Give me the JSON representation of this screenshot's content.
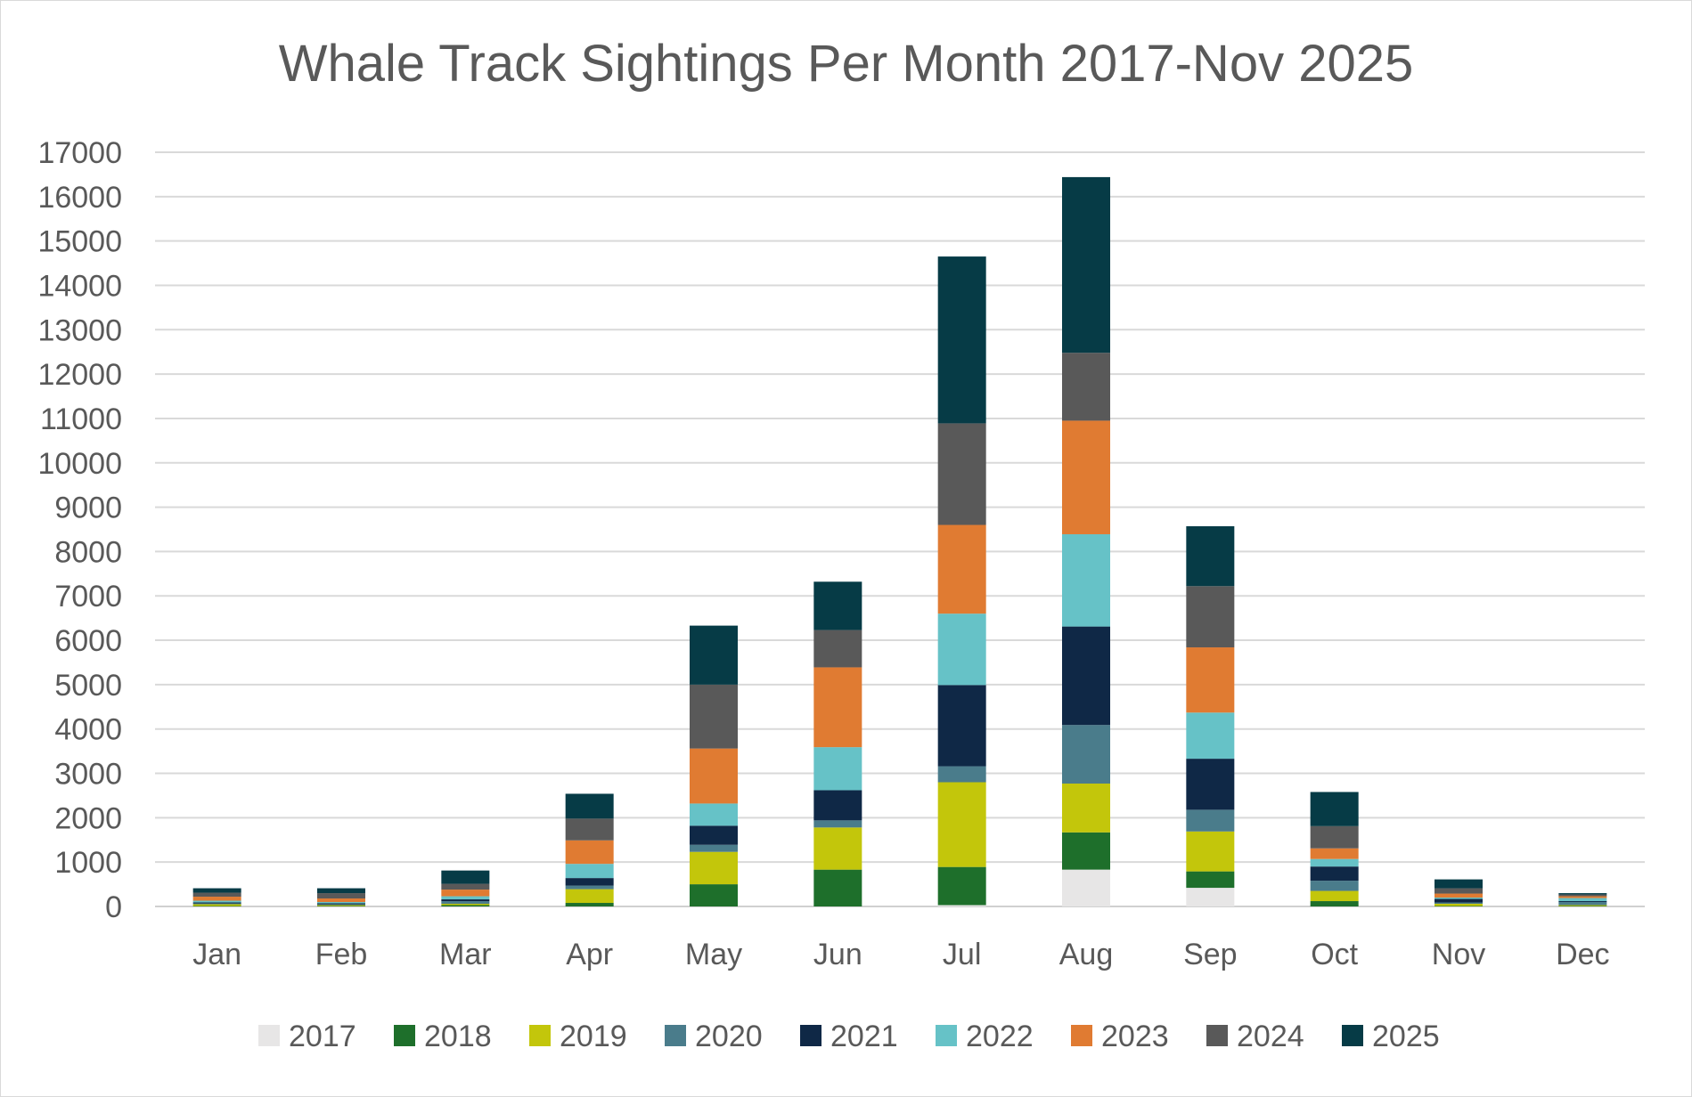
{
  "chart_data": {
    "type": "bar",
    "stacked": true,
    "title": "Whale Track Sightings Per Month 2017-Nov 2025",
    "xlabel": "",
    "ylabel": "",
    "ylim": [
      0,
      17000
    ],
    "ytick_step": 1000,
    "grid": true,
    "legend_position": "bottom",
    "categories": [
      "Jan",
      "Feb",
      "Mar",
      "Apr",
      "May",
      "Jun",
      "Jul",
      "Aug",
      "Sep",
      "Oct",
      "Nov",
      "Dec"
    ],
    "series": [
      {
        "name": "2017",
        "color": "#e7e6e6",
        "values": [
          0,
          0,
          0,
          0,
          0,
          0,
          30,
          830,
          420,
          0,
          0,
          0
        ]
      },
      {
        "name": "2018",
        "color": "#1e6f2b",
        "values": [
          10,
          10,
          30,
          80,
          500,
          830,
          860,
          840,
          370,
          120,
          10,
          10
        ]
      },
      {
        "name": "2019",
        "color": "#c3c60b",
        "values": [
          40,
          20,
          30,
          310,
          730,
          950,
          1910,
          1100,
          900,
          230,
          50,
          20
        ]
      },
      {
        "name": "2020",
        "color": "#4a7c8b",
        "values": [
          20,
          20,
          60,
          80,
          160,
          160,
          360,
          1320,
          490,
          230,
          30,
          70
        ]
      },
      {
        "name": "2021",
        "color": "#0f2846",
        "values": [
          20,
          20,
          40,
          170,
          430,
          680,
          1830,
          2220,
          1150,
          320,
          80,
          20
        ]
      },
      {
        "name": "2022",
        "color": "#66c2c7",
        "values": [
          40,
          30,
          70,
          320,
          500,
          970,
          1610,
          2080,
          1040,
          170,
          30,
          70
        ]
      },
      {
        "name": "2023",
        "color": "#e07b32",
        "values": [
          90,
          80,
          150,
          530,
          1240,
          1800,
          2000,
          2560,
          1470,
          240,
          90,
          40
        ]
      },
      {
        "name": "2024",
        "color": "#595959",
        "values": [
          90,
          120,
          130,
          490,
          1440,
          840,
          2290,
          1530,
          1380,
          500,
          120,
          40
        ]
      },
      {
        "name": "2025",
        "color": "#063b46",
        "values": [
          100,
          110,
          300,
          560,
          1330,
          1090,
          3760,
          3960,
          1350,
          770,
          200,
          30
        ]
      }
    ]
  }
}
